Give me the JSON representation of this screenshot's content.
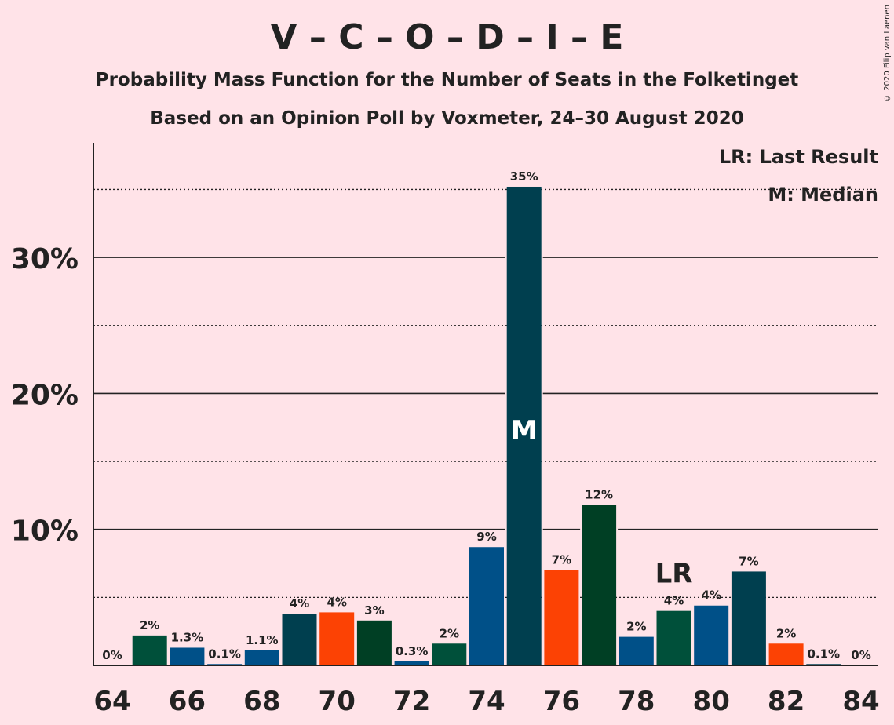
{
  "title": "V – C – O – D – I – E",
  "subtitle": "Probability Mass Function for the Number of Seats in the Folketinget",
  "subtitle2": "Based on an Opinion Poll by Voxmeter, 24–30 August 2020",
  "copyright": "© 2020 Filip van Laenen",
  "legend": {
    "last_result": "LR: Last Result",
    "median": "M: Median"
  },
  "chart_data": {
    "type": "bar",
    "x": [
      64,
      65,
      66,
      67,
      68,
      69,
      70,
      71,
      72,
      73,
      74,
      75,
      76,
      77,
      78,
      79,
      80,
      81,
      82,
      83,
      84
    ],
    "values": [
      0,
      2.2,
      1.3,
      0.1,
      1.1,
      3.8,
      3.9,
      3.3,
      0.3,
      1.6,
      8.7,
      35.2,
      7.0,
      11.8,
      2.1,
      4.0,
      4.4,
      6.9,
      1.6,
      0.1,
      0
    ],
    "labels": [
      "0%",
      "2%",
      "1.3%",
      "0.1%",
      "1.1%",
      "4%",
      "4%",
      "3%",
      "0.3%",
      "2%",
      "9%",
      "35%",
      "7%",
      "12%",
      "2%",
      "4%",
      "4%",
      "7%",
      "2%",
      "0.1%",
      "0%"
    ],
    "colors": [
      "#00503a",
      "#00503a",
      "#005088",
      "#005088",
      "#005088",
      "#003f4f",
      "#fc4204",
      "#003f24",
      "#005088",
      "#00503a",
      "#005088",
      "#003f4f",
      "#fc4204",
      "#003f24",
      "#005088",
      "#00503a",
      "#005088",
      "#003f4f",
      "#fc4204",
      "#003f4f",
      "#003f4f"
    ],
    "xticks": [
      "64",
      "66",
      "68",
      "70",
      "72",
      "74",
      "76",
      "78",
      "80",
      "82",
      "84"
    ],
    "yticks": [
      "10%",
      "20%",
      "30%"
    ],
    "ylim": [
      0,
      38
    ],
    "median_seat": 75,
    "median_marker": "M",
    "last_result_seat": 79,
    "last_result_marker": "LR"
  }
}
